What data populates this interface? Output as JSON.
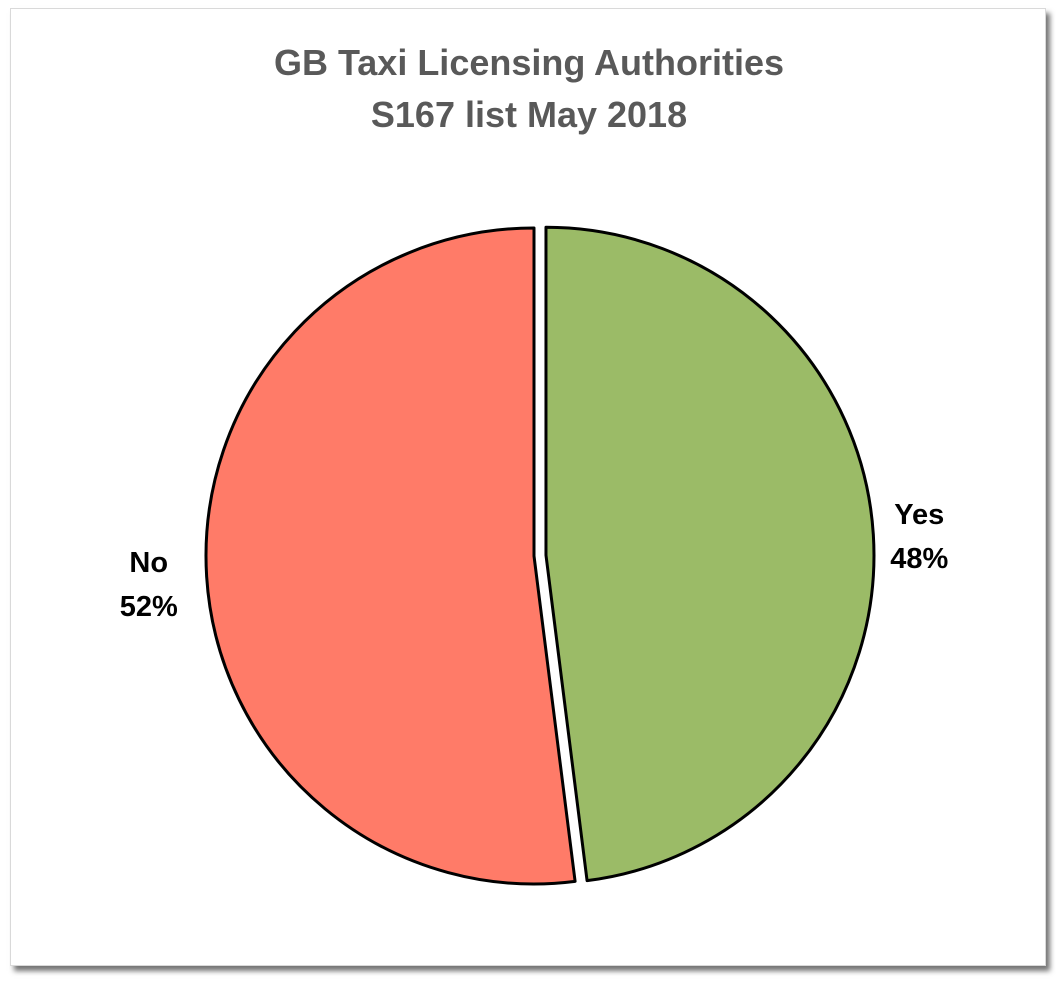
{
  "chart_data": {
    "type": "pie",
    "title": "GB Taxi Licensing Authorities",
    "subtitle": "S167 list May 2018",
    "legend": "none",
    "slices": [
      {
        "label": "Yes",
        "value": 48,
        "value_label": "48%",
        "color": "#9bbb67",
        "exploded": true
      },
      {
        "label": "No",
        "value": 52,
        "value_label": "52%",
        "color": "#ff7b68",
        "exploded": false
      }
    ]
  }
}
